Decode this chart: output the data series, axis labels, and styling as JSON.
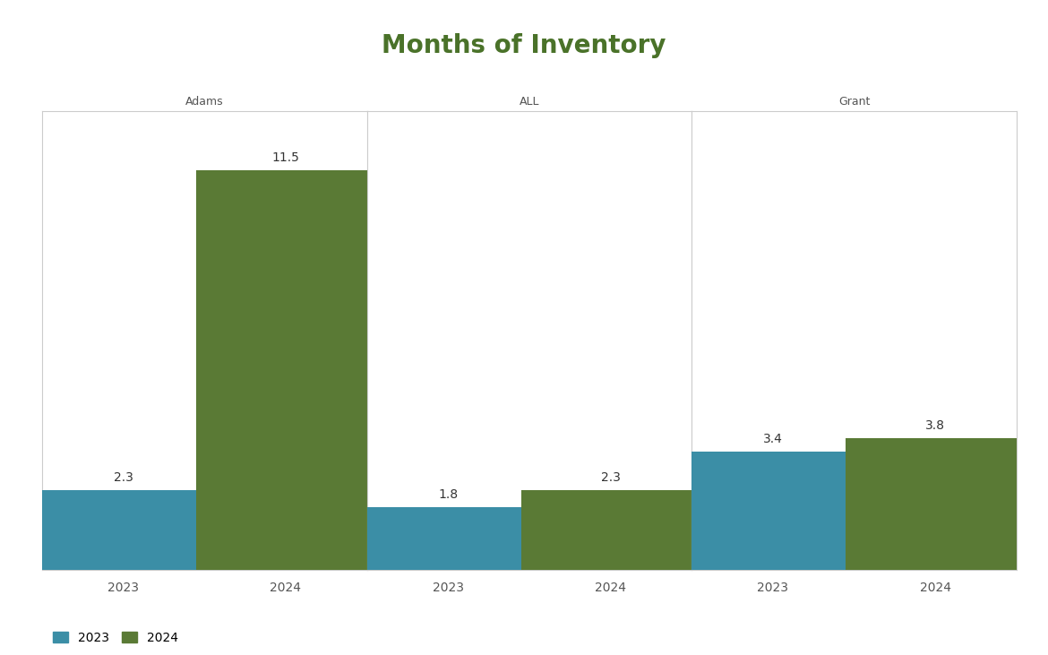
{
  "title": "Months of Inventory",
  "title_color": "#4a7229",
  "title_fontsize": 20,
  "panels": [
    "Adams",
    "ALL",
    "Grant"
  ],
  "years": [
    "2023",
    "2024"
  ],
  "values": {
    "Adams": [
      2.3,
      11.5
    ],
    "ALL": [
      1.8,
      2.3
    ],
    "Grant": [
      3.4,
      3.8
    ]
  },
  "color_2023": "#3b8ea6",
  "color_2024": "#5a7a35",
  "bar_width": 0.55,
  "background_color": "#ffffff",
  "panel_bg_color": "#ffffff",
  "border_color": "#cccccc",
  "label_fontsize": 9,
  "tick_fontsize": 10,
  "value_label_fontsize": 10,
  "legend_fontsize": 10,
  "panel_title_fontsize": 9,
  "ylim": [
    0,
    13.2
  ],
  "x_positions": [
    0.25,
    0.75
  ]
}
